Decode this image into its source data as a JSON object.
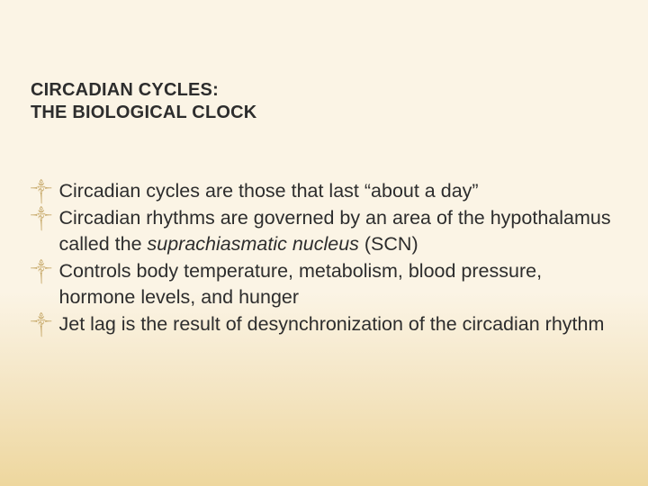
{
  "slide": {
    "title_line1": "CIRCADIAN CYCLES:",
    "title_line2": "THE BIOLOGICAL CLOCK",
    "bullets": [
      {
        "pre": "Circadian cycles are those that last “about a day”",
        "italic": "",
        "post": ""
      },
      {
        "pre": "Circadian rhythms are governed by an area of the hypothalamus called the ",
        "italic": "suprachiasmatic nucleus",
        "post": " (SCN)"
      },
      {
        "pre": "Controls body temperature, metabolism, blood pressure, hormone levels, and hunger",
        "italic": "",
        "post": ""
      },
      {
        "pre": "Jet lag is the result of desynchronization of the circadian rhythm",
        "italic": "",
        "post": ""
      }
    ],
    "bullet_glyph": "༒",
    "colors": {
      "text": "#2d2d2d",
      "bullet": "#c7a96a",
      "bg_top": "#fbf4e5",
      "bg_bottom": "#eed79e"
    },
    "fontsize": {
      "title": 20,
      "body": 21.5
    }
  }
}
